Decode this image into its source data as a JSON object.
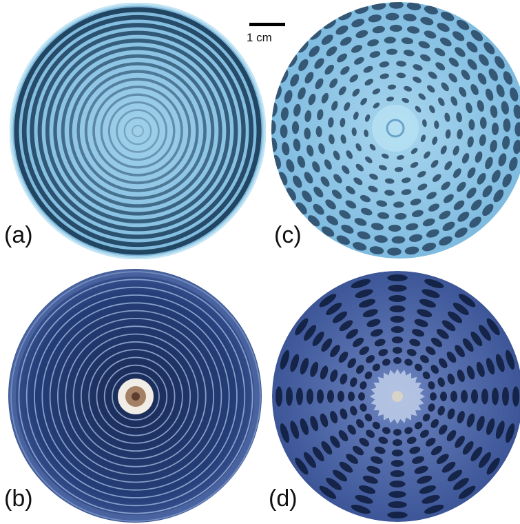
{
  "figure": {
    "scale_bar_label": "1 cm",
    "panels": [
      {
        "id": "a",
        "label": "(a)",
        "pattern": "concentric-rings",
        "palette": "light-blue"
      },
      {
        "id": "b",
        "label": "(b)",
        "pattern": "concentric-rings-with-center-hole",
        "palette": "dark-blue"
      },
      {
        "id": "c",
        "label": "(c)",
        "pattern": "quasi-lattice-cells",
        "palette": "light-blue"
      },
      {
        "id": "d",
        "label": "(d)",
        "pattern": "radial-spokes-cells",
        "palette": "dark-blue"
      }
    ]
  },
  "colors": {
    "light_bg": "#8fc6e4",
    "light_dark": "#1c3f5c",
    "dark_bg": "#2e4a86",
    "dark_line": "#9fb6dc",
    "dark_cell": "#0d1a3a"
  }
}
